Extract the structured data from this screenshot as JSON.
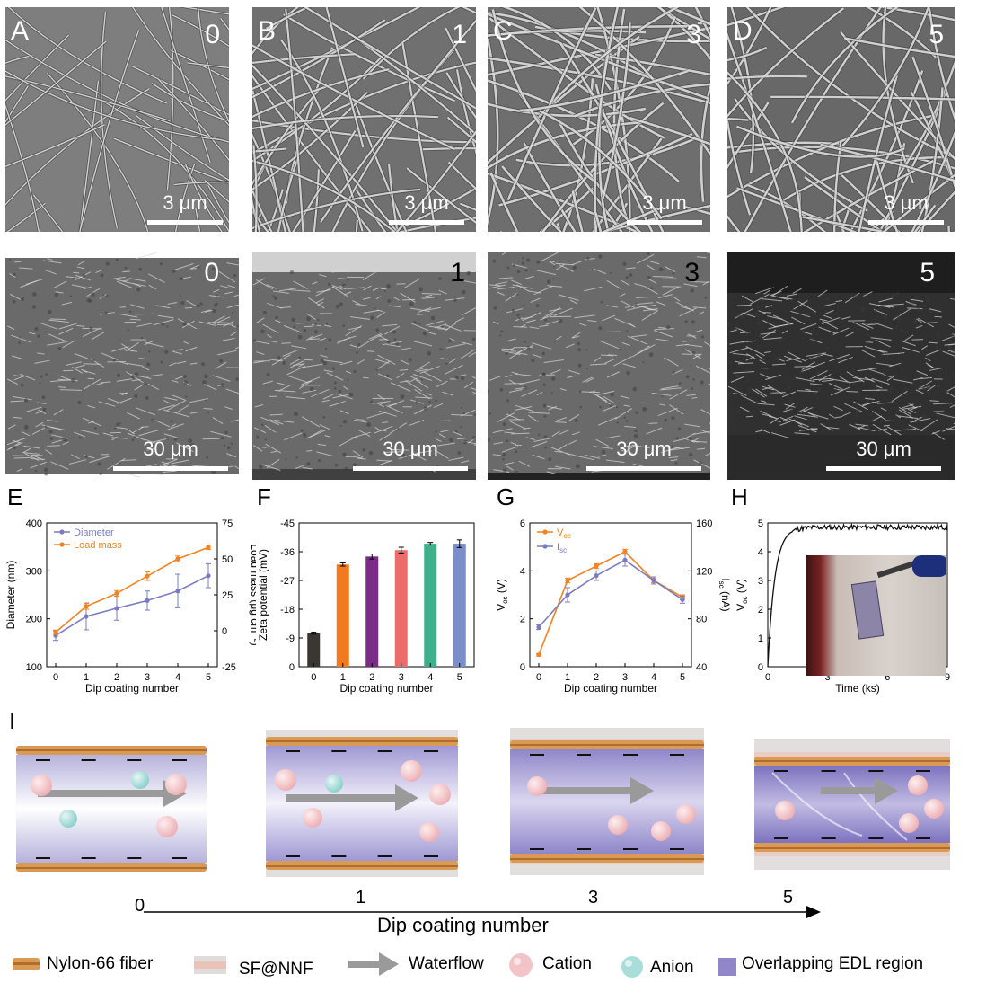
{
  "sem_top": [
    {
      "letter": "A",
      "count": "0",
      "scale": "3 μm"
    },
    {
      "letter": "B",
      "count": "1",
      "scale": "3 μm"
    },
    {
      "letter": "C",
      "count": "3",
      "scale": "3 μm"
    },
    {
      "letter": "D",
      "count": "5",
      "scale": "3 μm"
    }
  ],
  "sem_bottom": [
    {
      "count": "0",
      "scale": "30 μm"
    },
    {
      "count": "1",
      "scale": "30 μm"
    },
    {
      "count": "3",
      "scale": "30 μm"
    },
    {
      "count": "5",
      "scale": "30 μm"
    }
  ],
  "panel_letters": {
    "E": "E",
    "F": "F",
    "G": "G",
    "H": "H",
    "I": "I"
  },
  "colors": {
    "diameter": "#7b7bc4",
    "load": "#f58220",
    "voc": "#f58220",
    "isc": "#7b7bc4",
    "h_line": "#111111",
    "bars": [
      "#3a3632",
      "#f2791e",
      "#7a2d86",
      "#ec6b6b",
      "#3fb08c",
      "#7b8ec9"
    ]
  },
  "chart_data": [
    {
      "panel": "E",
      "type": "line",
      "xlabel": "Dip coating number",
      "ylabel": "Diameter (nm)",
      "y2label": "Load mass (μg cm⁻²)",
      "x": [
        0,
        1,
        2,
        3,
        4,
        5
      ],
      "xticks": [
        "0",
        "1",
        "2",
        "3",
        "4",
        "5"
      ],
      "ylim": [
        100,
        400
      ],
      "yticks": [
        "100",
        "200",
        "300",
        "400"
      ],
      "y2lim": [
        -25,
        75
      ],
      "y2ticks": [
        "-25",
        "0",
        "25",
        "50",
        "75"
      ],
      "legend": "top-left",
      "series": [
        {
          "name": "Diameter",
          "axis": "left",
          "values": [
            165,
            205,
            222,
            238,
            258,
            290
          ],
          "errors": [
            10,
            28,
            25,
            20,
            35,
            25
          ]
        },
        {
          "name": "Load mass",
          "axis": "right",
          "values": [
            -1,
            17,
            26,
            38,
            50,
            58
          ],
          "errors": [
            1.5,
            2,
            2,
            3,
            2,
            1.5
          ]
        }
      ]
    },
    {
      "panel": "F",
      "type": "bar",
      "xlabel": "Dip coating number",
      "ylabel": "Zeta potential (mV)",
      "categories": [
        "0",
        "1",
        "2",
        "3",
        "4",
        "5"
      ],
      "ylim": [
        0,
        -45
      ],
      "yticks": [
        "0",
        "-9",
        "-18",
        "-27",
        "-36",
        "-45"
      ],
      "values": [
        -10.5,
        -32,
        -34.5,
        -36.5,
        -38.5,
        -38.5
      ],
      "errors": [
        0.3,
        0.5,
        0.8,
        0.9,
        0.4,
        1.2
      ]
    },
    {
      "panel": "G",
      "type": "line",
      "xlabel": "Dip coating number",
      "ylabel": "V",
      "ylabel_sub": "oc",
      "ylabel_unit": " (V)",
      "y2label": "I",
      "y2label_sub": "sc",
      "y2label_unit": " (nA)",
      "x": [
        0,
        1,
        2,
        3,
        4,
        5
      ],
      "xticks": [
        "0",
        "1",
        "2",
        "3",
        "4",
        "5"
      ],
      "ylim": [
        0,
        6
      ],
      "yticks": [
        "0",
        "2",
        "4",
        "6"
      ],
      "y2lim": [
        40,
        160
      ],
      "y2ticks": [
        "40",
        "80",
        "120",
        "160"
      ],
      "legend": "top-left",
      "series": [
        {
          "name": "V",
          "sub": "oc",
          "axis": "left",
          "values": [
            0.5,
            3.6,
            4.2,
            4.8,
            3.6,
            2.9
          ],
          "errors": [
            0.05,
            0.1,
            0.1,
            0.1,
            0.1,
            0.1
          ]
        },
        {
          "name": "I",
          "sub": "sc",
          "axis": "right",
          "values": [
            73,
            100,
            116,
            129,
            112,
            96
          ],
          "errors": [
            2,
            6,
            4,
            5,
            3,
            3
          ]
        }
      ]
    },
    {
      "panel": "H",
      "type": "line",
      "xlabel": "Time (ks)",
      "ylabel": "V",
      "ylabel_sub": "oc",
      "ylabel_unit": " (V)",
      "xlim": [
        0,
        9
      ],
      "xticks": [
        "0",
        "3",
        "6",
        "9"
      ],
      "ylim": [
        0,
        5
      ],
      "yticks": [
        "0",
        "1",
        "2",
        "3",
        "4",
        "5"
      ],
      "series": [
        {
          "name": "",
          "values": []
        }
      ]
    }
  ],
  "schematic": {
    "axis_label": "Dip coating number",
    "ticks": [
      "0",
      "1",
      "3",
      "5"
    ]
  },
  "legend": [
    {
      "label": "Nylon-66 fiber",
      "icon": "nylon-fiber-icon"
    },
    {
      "label": "SF@NNF",
      "icon": "sf-nnf-icon"
    },
    {
      "label": "Waterflow",
      "icon": "waterflow-arrow-icon"
    },
    {
      "label": "Cation",
      "icon": "cation-icon"
    },
    {
      "label": "Anion",
      "icon": "anion-icon"
    },
    {
      "label": "Overlapping EDL region",
      "icon": "edl-region-icon"
    }
  ]
}
